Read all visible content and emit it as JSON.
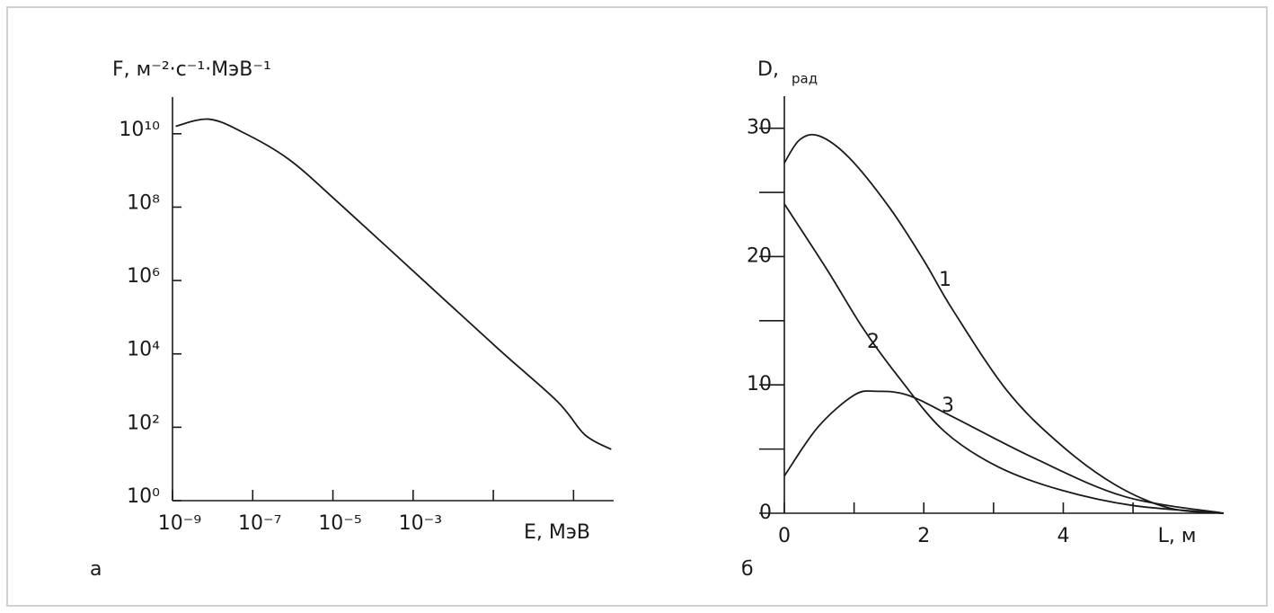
{
  "chart_data": [
    {
      "type": "line",
      "panel": "а",
      "ylabel": "F, м⁻²·с⁻¹·МэВ⁻¹",
      "xlabel": "E, МэВ",
      "xlog": true,
      "ylog": true,
      "xlim": [
        1e-09,
        100.0
      ],
      "ylim": [
        1,
        100000000000.0
      ],
      "xticks": [
        {
          "value": 1e-09,
          "label": "10⁻⁹"
        },
        {
          "value": 1e-07,
          "label": "10⁻⁷"
        },
        {
          "value": 1e-05,
          "label": "10⁻⁵"
        },
        {
          "value": 0.001,
          "label": "10⁻³"
        }
      ],
      "xminorticks": [
        0.1,
        10
      ],
      "yticks": [
        {
          "value": 1,
          "label": "10⁰"
        },
        {
          "value": 100,
          "label": "10²"
        },
        {
          "value": 10000.0,
          "label": "10⁴"
        },
        {
          "value": 1000000.0,
          "label": "10⁶"
        },
        {
          "value": 100000000.0,
          "label": "10⁸"
        },
        {
          "value": 10000000000.0,
          "label": "10¹⁰"
        }
      ],
      "x": [
        1.2e-09,
        8e-09,
        5.6e-08,
        8e-07,
        1.4e-05,
        0.0014,
        0.14,
        4,
        19,
        87
      ],
      "series": [
        {
          "color": "#1a1a1a",
          "values": [
            16000000000.0,
            25000000000.0,
            11000000000.0,
            2000000000.0,
            130000000.0,
            1300000.0,
            13000.0,
            500,
            63,
            25
          ]
        }
      ]
    },
    {
      "type": "line",
      "panel": "б",
      "ylabel": "D,",
      "ylabel_unit": "рад",
      "xlabel": "L, м",
      "xlim": [
        0,
        6.3
      ],
      "ylim": [
        0,
        32.5
      ],
      "xticks": [
        0,
        2,
        4
      ],
      "xminorticks": [
        1,
        3,
        5
      ],
      "yticks": [
        0,
        10,
        20,
        30
      ],
      "yminorticks": [
        5,
        15,
        25
      ],
      "series": [
        {
          "name": "1",
          "color": "#1a1a1a",
          "x": [
            0,
            0.22,
            0.5,
            0.93,
            1.51,
            2.0,
            2.42,
            3.2,
            3.97,
            4.75,
            5.52,
            6.3
          ],
          "values": [
            27.3,
            29.1,
            29.4,
            27.7,
            23.8,
            19.7,
            15.8,
            9.5,
            5.3,
            2.2,
            0.4,
            0
          ]
        },
        {
          "name": "2",
          "color": "#1a1a1a",
          "x": [
            0,
            0.61,
            1.13,
            1.64,
            2.29,
            3.07,
            3.97,
            5.0,
            6.3
          ],
          "values": [
            24.1,
            19.0,
            14.4,
            10.6,
            6.4,
            3.6,
            1.8,
            0.6,
            0
          ]
        },
        {
          "name": "3",
          "color": "#1a1a1a",
          "x": [
            0,
            0.48,
            1.0,
            1.32,
            1.77,
            2.42,
            3.58,
            4.88,
            6.3
          ],
          "values": [
            2.9,
            6.7,
            9.2,
            9.5,
            9.2,
            7.5,
            4.3,
            1.3,
            0
          ]
        }
      ]
    }
  ]
}
